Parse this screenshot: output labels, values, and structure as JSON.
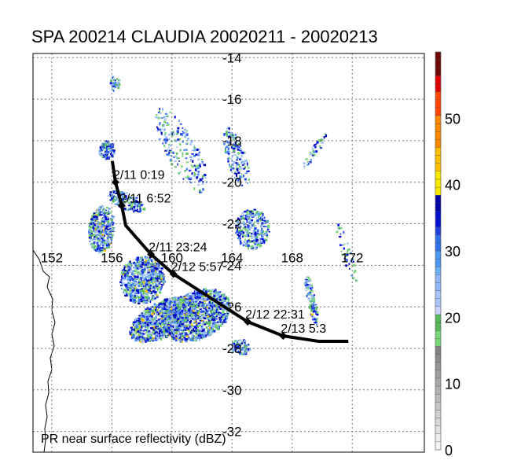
{
  "title": "SPA 200214 CLAUDIA 20020211 - 20020213",
  "footer_label": "PR near surface reflectivity (dBZ)",
  "map": {
    "lon_range": [
      150.75,
      176.8
    ],
    "lat_range": [
      -33.0,
      -13.8
    ],
    "lon_ticks": [
      152,
      156,
      160,
      164,
      168,
      172
    ],
    "lat_ticks": [
      -14,
      -16,
      -18,
      -20,
      -22,
      -24,
      -26,
      -28,
      -30,
      -32
    ],
    "lon_labels": [
      "152",
      "156",
      "160",
      "164",
      "168",
      "172"
    ],
    "lat_labels": [
      "-14",
      "-16",
      "-18",
      "-20",
      "-22",
      "-24",
      "-26",
      "-28",
      "-30",
      "-32"
    ]
  },
  "track": {
    "color": "#000000",
    "points": [
      {
        "lon": 156.03,
        "lat": -18.98
      },
      {
        "lon": 156.24,
        "lat": -20.0,
        "label": "2/11 0:19"
      },
      {
        "lon": 156.66,
        "lat": -21.13,
        "label": "2/11 6:52"
      },
      {
        "lon": 156.92,
        "lat": -22.08
      },
      {
        "lon": 158.6,
        "lat": -23.47,
        "label": "2/11 23:24"
      },
      {
        "lon": 160.1,
        "lat": -24.42,
        "label": "2/12 5:57"
      },
      {
        "lon": 165.04,
        "lat": -26.72,
        "label": "2/12 22:31"
      },
      {
        "lon": 167.4,
        "lat": -27.4,
        "label": "2/13 5:3"
      },
      {
        "lon": 169.75,
        "lat": -27.66
      },
      {
        "lon": 171.74,
        "lat": -27.66
      }
    ]
  },
  "colorbar": {
    "min": 0,
    "max": 60,
    "tick_labels": [
      "0",
      "10",
      "20",
      "30",
      "40",
      "50"
    ],
    "tick_values": [
      0,
      10,
      20,
      30,
      40,
      50
    ]
  }
}
